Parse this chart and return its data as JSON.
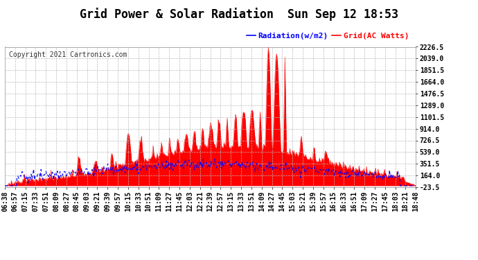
{
  "title": "Grid Power & Solar Radiation  Sun Sep 12 18:53",
  "copyright": "Copyright 2021 Cartronics.com",
  "legend_radiation": "Radiation(w/m2)",
  "legend_grid": "Grid(AC Watts)",
  "legend_radiation_color": "#0000ff",
  "legend_grid_color": "#ff0000",
  "ymin": -23.5,
  "ymax": 2226.5,
  "yticks": [
    -23.5,
    164.0,
    351.5,
    539.0,
    726.5,
    914.0,
    1101.5,
    1289.0,
    1476.5,
    1664.0,
    1851.5,
    2039.0,
    2226.5
  ],
  "background_color": "#ffffff",
  "plot_bg_color": "#ffffff",
  "grid_color": "#cccccc",
  "title_color": "#000000",
  "tick_color": "#000000",
  "radiation_fill_color": "#ff0000",
  "radiation_line_color": "#ff0000",
  "grid_line_color": "#0000ff",
  "xtick_labels": [
    "06:38",
    "06:57",
    "07:15",
    "07:33",
    "07:51",
    "08:09",
    "08:27",
    "08:45",
    "09:03",
    "09:21",
    "09:39",
    "09:57",
    "10:15",
    "10:33",
    "10:51",
    "11:09",
    "11:27",
    "11:45",
    "12:03",
    "12:21",
    "12:39",
    "12:57",
    "13:15",
    "13:33",
    "13:51",
    "14:09",
    "14:27",
    "14:45",
    "15:03",
    "15:21",
    "15:39",
    "15:57",
    "16:15",
    "16:33",
    "16:51",
    "17:09",
    "17:27",
    "17:45",
    "18:03",
    "18:21",
    "18:48"
  ],
  "title_fontsize": 12,
  "copyright_fontsize": 7,
  "tick_fontsize": 7,
  "legend_fontsize": 8
}
